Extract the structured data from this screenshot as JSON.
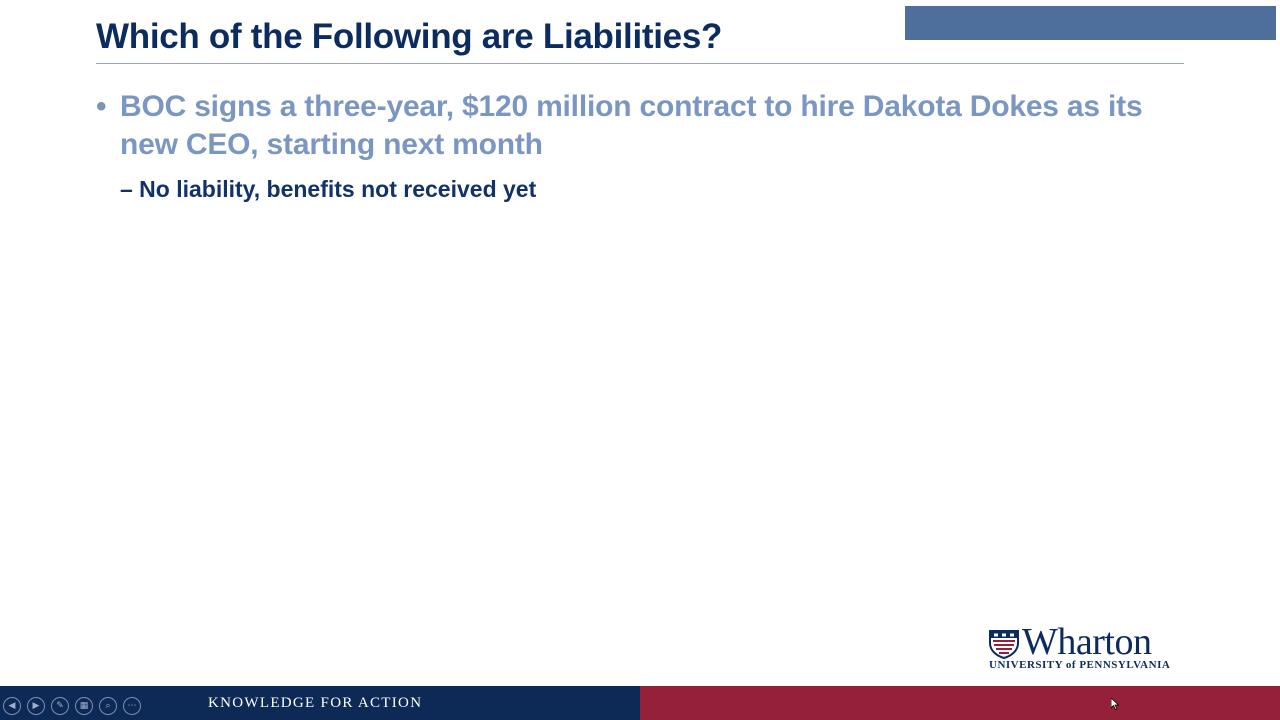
{
  "slide": {
    "title": "Which of the Following are Liabilities?",
    "bullets": [
      {
        "marker": "•",
        "text": "BOC signs a three-year, $120 million contract to hire Dakota Dokes as its new CEO, starting next month",
        "sub_bullets": [
          {
            "text": "– No liability, benefits not received yet"
          }
        ]
      }
    ]
  },
  "logo": {
    "name": "Wharton",
    "subtitle": "UNIVERSITY of PENNSYLVANIA"
  },
  "footer": {
    "tagline": "KNOWLEDGE FOR ACTION",
    "left_color": "#0d2a57",
    "right_color": "#94203a"
  },
  "controls": [
    {
      "name": "previous-slide-icon",
      "glyph": "◀"
    },
    {
      "name": "next-slide-icon",
      "glyph": "▶"
    },
    {
      "name": "pen-icon",
      "glyph": "✎"
    },
    {
      "name": "slides-grid-icon",
      "glyph": "▦"
    },
    {
      "name": "zoom-icon",
      "glyph": "⌕"
    },
    {
      "name": "more-options-icon",
      "glyph": "⋯"
    }
  ],
  "colors": {
    "title": "#0c2b5e",
    "bullet_text": "#7a96c2",
    "sub_bullet_text": "#12326a",
    "banner": "#4e6f9c"
  }
}
